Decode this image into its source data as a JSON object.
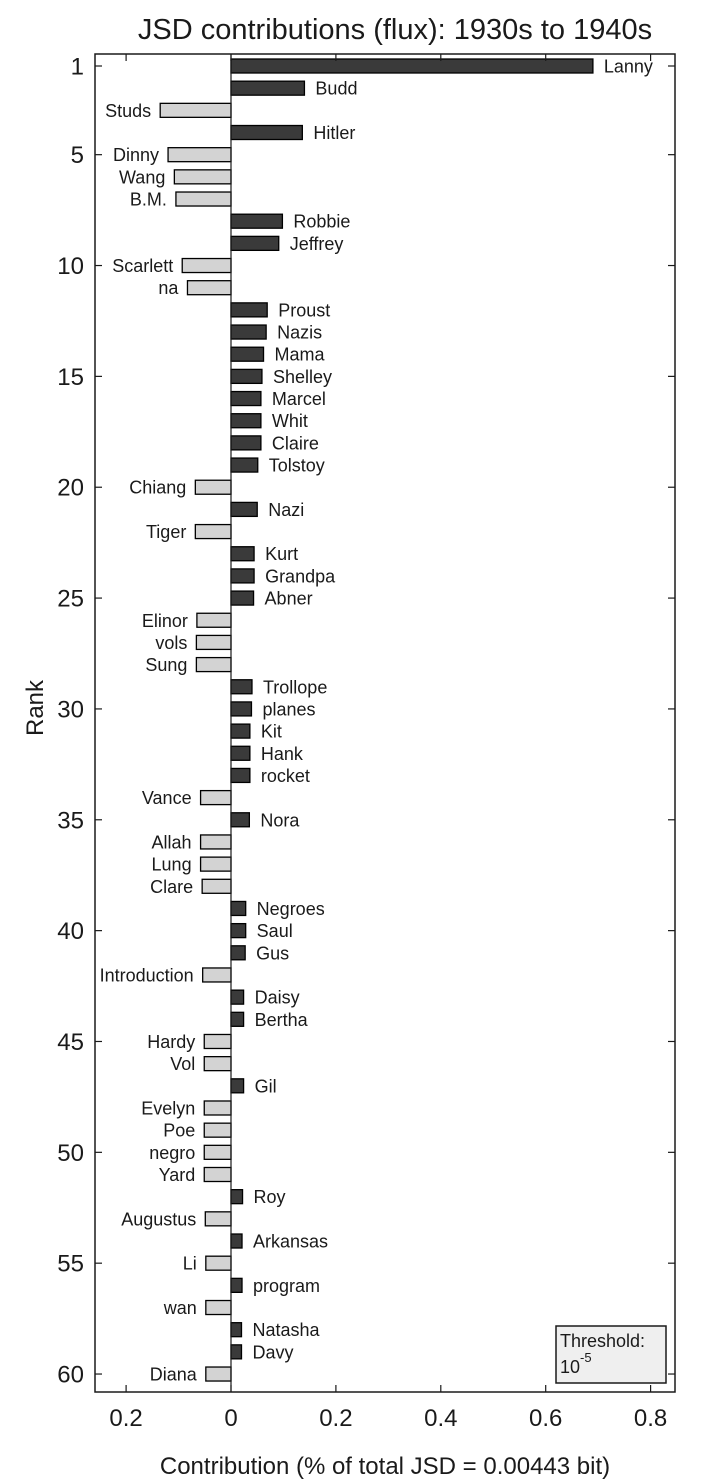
{
  "chart_data": {
    "type": "bar",
    "orientation": "horizontal",
    "title": "JSD contributions (flux): 1930s to 1940s",
    "xlabel": "Contribution (% of total JSD = 0.00443 bit)",
    "ylabel": "Rank",
    "xlim": [
      -0.25,
      0.83
    ],
    "ylim": [
      0.5,
      60.5
    ],
    "x_ticks": [
      -0.2,
      0,
      0.2,
      0.4,
      0.6,
      0.8
    ],
    "x_tick_labels": [
      "0.2",
      "0",
      "0.2",
      "0.4",
      "0.6",
      "0.8"
    ],
    "y_ticks": [
      1,
      5,
      10,
      15,
      20,
      25,
      30,
      35,
      40,
      45,
      50,
      55,
      60
    ],
    "y_tick_labels": [
      "1",
      "5",
      "10",
      "15",
      "20",
      "25",
      "30",
      "35",
      "40",
      "45",
      "50",
      "55",
      "60"
    ],
    "grid": false,
    "colors": {
      "positive": "#3a3a3a",
      "negative": "#d3d3d3",
      "edge": "#000000"
    },
    "threshold_box": {
      "label": "Threshold:",
      "base": "10",
      "exponent": "-5"
    },
    "bars": [
      {
        "rank": 1,
        "word": "Lanny",
        "value": 0.69
      },
      {
        "rank": 2,
        "word": "Budd",
        "value": 0.14
      },
      {
        "rank": 3,
        "word": "Studs",
        "value": -0.135
      },
      {
        "rank": 4,
        "word": "Hitler",
        "value": 0.136
      },
      {
        "rank": 5,
        "word": "Dinny",
        "value": -0.12
      },
      {
        "rank": 6,
        "word": "Wang",
        "value": -0.108
      },
      {
        "rank": 7,
        "word": "B.M.",
        "value": -0.105
      },
      {
        "rank": 8,
        "word": "Robbie",
        "value": 0.098
      },
      {
        "rank": 9,
        "word": "Jeffrey",
        "value": 0.091
      },
      {
        "rank": 10,
        "word": "Scarlett",
        "value": -0.093
      },
      {
        "rank": 11,
        "word": "na",
        "value": -0.083
      },
      {
        "rank": 12,
        "word": "Proust",
        "value": 0.069
      },
      {
        "rank": 13,
        "word": "Nazis",
        "value": 0.067
      },
      {
        "rank": 14,
        "word": "Mama",
        "value": 0.062
      },
      {
        "rank": 15,
        "word": "Shelley",
        "value": 0.059
      },
      {
        "rank": 16,
        "word": "Marcel",
        "value": 0.057
      },
      {
        "rank": 17,
        "word": "Whit",
        "value": 0.057
      },
      {
        "rank": 18,
        "word": "Claire",
        "value": 0.057
      },
      {
        "rank": 19,
        "word": "Tolstoy",
        "value": 0.051
      },
      {
        "rank": 20,
        "word": "Chiang",
        "value": -0.068
      },
      {
        "rank": 21,
        "word": "Nazi",
        "value": 0.05
      },
      {
        "rank": 22,
        "word": "Tiger",
        "value": -0.068
      },
      {
        "rank": 23,
        "word": "Kurt",
        "value": 0.044
      },
      {
        "rank": 24,
        "word": "Grandpa",
        "value": 0.044
      },
      {
        "rank": 25,
        "word": "Abner",
        "value": 0.043
      },
      {
        "rank": 26,
        "word": "Elinor",
        "value": -0.065
      },
      {
        "rank": 27,
        "word": "vols",
        "value": -0.066
      },
      {
        "rank": 28,
        "word": "Sung",
        "value": -0.066
      },
      {
        "rank": 29,
        "word": "Trollope",
        "value": 0.04
      },
      {
        "rank": 30,
        "word": "planes",
        "value": 0.039
      },
      {
        "rank": 31,
        "word": "Kit",
        "value": 0.036
      },
      {
        "rank": 32,
        "word": "Hank",
        "value": 0.036
      },
      {
        "rank": 33,
        "word": "rocket",
        "value": 0.036
      },
      {
        "rank": 34,
        "word": "Vance",
        "value": -0.058
      },
      {
        "rank": 35,
        "word": "Nora",
        "value": 0.035
      },
      {
        "rank": 36,
        "word": "Allah",
        "value": -0.058
      },
      {
        "rank": 37,
        "word": "Lung",
        "value": -0.058
      },
      {
        "rank": 38,
        "word": "Clare",
        "value": -0.055
      },
      {
        "rank": 39,
        "word": "Negroes",
        "value": 0.028
      },
      {
        "rank": 40,
        "word": "Saul",
        "value": 0.028
      },
      {
        "rank": 41,
        "word": "Gus",
        "value": 0.027
      },
      {
        "rank": 42,
        "word": "Introduction",
        "value": -0.054
      },
      {
        "rank": 43,
        "word": "Daisy",
        "value": 0.024
      },
      {
        "rank": 44,
        "word": "Bertha",
        "value": 0.024
      },
      {
        "rank": 45,
        "word": "Hardy",
        "value": -0.051
      },
      {
        "rank": 46,
        "word": "Vol",
        "value": -0.051
      },
      {
        "rank": 47,
        "word": "Gil",
        "value": 0.024
      },
      {
        "rank": 48,
        "word": "Evelyn",
        "value": -0.051
      },
      {
        "rank": 49,
        "word": "Poe",
        "value": -0.051
      },
      {
        "rank": 50,
        "word": "negro",
        "value": -0.051
      },
      {
        "rank": 51,
        "word": "Yard",
        "value": -0.051
      },
      {
        "rank": 52,
        "word": "Roy",
        "value": 0.022
      },
      {
        "rank": 53,
        "word": "Augustus",
        "value": -0.049
      },
      {
        "rank": 54,
        "word": "Arkansas",
        "value": 0.021
      },
      {
        "rank": 55,
        "word": "Li",
        "value": -0.048
      },
      {
        "rank": 56,
        "word": "program",
        "value": 0.021
      },
      {
        "rank": 57,
        "word": "wan",
        "value": -0.048
      },
      {
        "rank": 58,
        "word": "Natasha",
        "value": 0.02
      },
      {
        "rank": 59,
        "word": "Davy",
        "value": 0.02
      },
      {
        "rank": 60,
        "word": "Diana",
        "value": -0.048
      }
    ]
  }
}
